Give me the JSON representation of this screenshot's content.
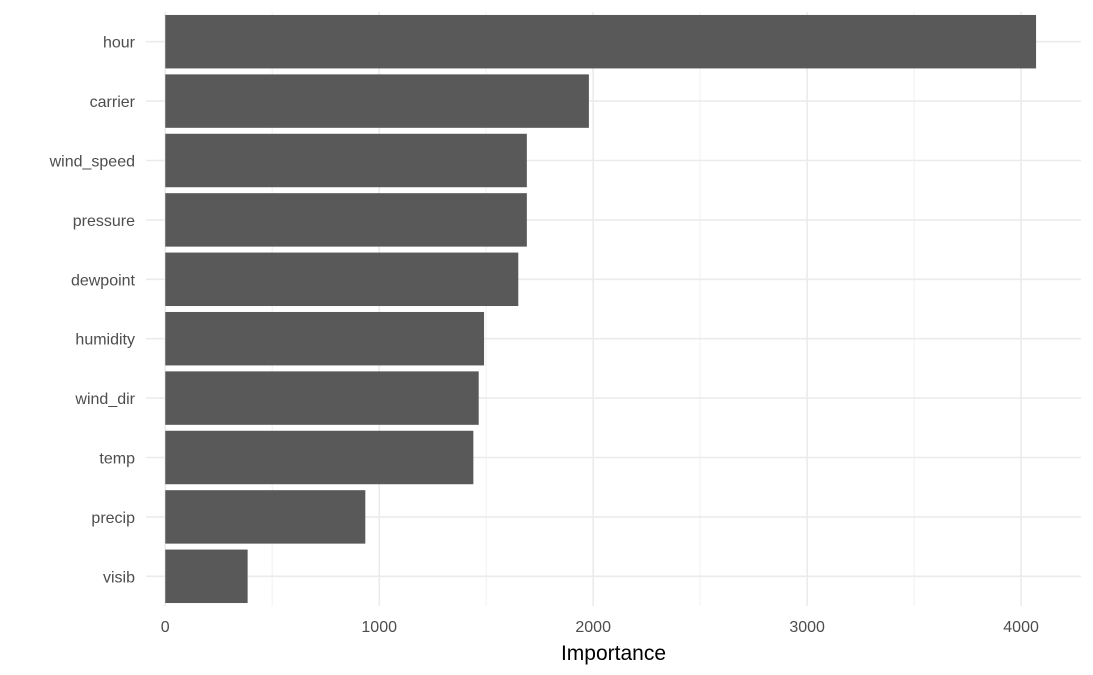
{
  "chart_data": {
    "type": "bar",
    "orientation": "horizontal",
    "categories": [
      "hour",
      "carrier",
      "wind_speed",
      "pressure",
      "dewpoint",
      "humidity",
      "wind_dir",
      "temp",
      "precip",
      "visib"
    ],
    "values": [
      4070,
      1980,
      1690,
      1690,
      1650,
      1490,
      1465,
      1440,
      935,
      385
    ],
    "title": "",
    "xlabel": "Importance",
    "ylabel": "",
    "xlim": [
      -90,
      4280
    ],
    "xticks": [
      0,
      1000,
      2000,
      3000,
      4000
    ],
    "xtick_labels": [
      "0",
      "1000",
      "2000",
      "3000",
      "4000"
    ],
    "grid": true,
    "bar_color": "#595959"
  }
}
